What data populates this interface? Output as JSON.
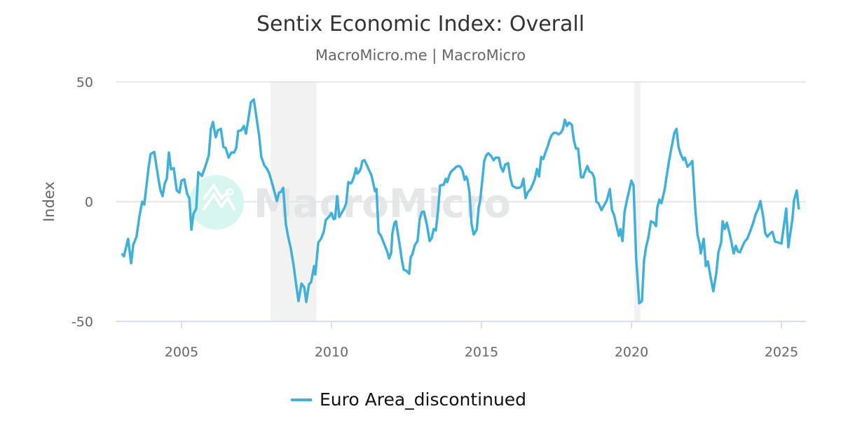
{
  "chart_data": {
    "type": "line",
    "title": "Sentix Economic Index: Overall",
    "subtitle": "MacroMicro.me | MacroMicro",
    "ylabel": "Index",
    "xlabel": "",
    "ylim": [
      -50,
      50
    ],
    "xlim": [
      2002.78,
      2025.81
    ],
    "yticks": [
      50,
      0,
      -50
    ],
    "xticks": [
      2005,
      2010,
      2015,
      2020,
      2025
    ],
    "grid": true,
    "legend_placement": "bottom",
    "recession_bands": [
      [
        2007.97,
        2009.49
      ],
      [
        2020.09,
        2020.3
      ]
    ],
    "watermark": "MacroMicro",
    "colors": {
      "line": "#3eb0da",
      "band": "#f2f2f2",
      "grid": "#e0e0e0"
    },
    "series": [
      {
        "name": "Euro Area_discontinued",
        "points": [
          [
            2003.01,
            -21.6
          ],
          [
            2003.08,
            -22.8
          ],
          [
            2003.22,
            -15.5
          ],
          [
            2003.32,
            -25.7
          ],
          [
            2003.39,
            -18.1
          ],
          [
            2003.5,
            -14.6
          ],
          [
            2003.6,
            -5.8
          ],
          [
            2003.69,
            0
          ],
          [
            2003.76,
            -1.2
          ],
          [
            2003.9,
            14.0
          ],
          [
            2003.97,
            19.9
          ],
          [
            2004.09,
            20.8
          ],
          [
            2004.23,
            9.6
          ],
          [
            2004.3,
            4.7
          ],
          [
            2004.37,
            2.3
          ],
          [
            2004.44,
            7.6
          ],
          [
            2004.51,
            9.6
          ],
          [
            2004.58,
            20.5
          ],
          [
            2004.65,
            13.5
          ],
          [
            2004.74,
            14.0
          ],
          [
            2004.84,
            4.7
          ],
          [
            2004.93,
            3.8
          ],
          [
            2005.0,
            8.8
          ],
          [
            2005.09,
            9.4
          ],
          [
            2005.19,
            3.2
          ],
          [
            2005.26,
            1.5
          ],
          [
            2005.33,
            -11.7
          ],
          [
            2005.4,
            -5.0
          ],
          [
            2005.49,
            -2.9
          ],
          [
            2005.56,
            12.3
          ],
          [
            2005.68,
            10.8
          ],
          [
            2005.79,
            14.6
          ],
          [
            2005.91,
            19.3
          ],
          [
            2005.98,
            30.4
          ],
          [
            2006.05,
            33.3
          ],
          [
            2006.14,
            26.9
          ],
          [
            2006.21,
            29.8
          ],
          [
            2006.31,
            30.4
          ],
          [
            2006.4,
            22.8
          ],
          [
            2006.47,
            22.5
          ],
          [
            2006.57,
            18.4
          ],
          [
            2006.66,
            20.5
          ],
          [
            2006.75,
            20.5
          ],
          [
            2006.82,
            22.2
          ],
          [
            2006.89,
            29.5
          ],
          [
            2006.99,
            29.8
          ],
          [
            2007.08,
            31.6
          ],
          [
            2007.15,
            28.4
          ],
          [
            2007.24,
            35.4
          ],
          [
            2007.31,
            41.5
          ],
          [
            2007.41,
            42.7
          ],
          [
            2007.5,
            35.1
          ],
          [
            2007.59,
            27.2
          ],
          [
            2007.66,
            18.7
          ],
          [
            2007.76,
            15.2
          ],
          [
            2007.85,
            13.7
          ],
          [
            2007.92,
            12.0
          ],
          [
            2008.01,
            8.2
          ],
          [
            2008.08,
            5.0
          ],
          [
            2008.18,
            0.3
          ],
          [
            2008.25,
            3.8
          ],
          [
            2008.32,
            4.1
          ],
          [
            2008.39,
            5.8
          ],
          [
            2008.48,
            -9.4
          ],
          [
            2008.55,
            -14.3
          ],
          [
            2008.64,
            -19.3
          ],
          [
            2008.74,
            -26.9
          ],
          [
            2008.81,
            -33.6
          ],
          [
            2008.9,
            -41.5
          ],
          [
            2009.0,
            -34.2
          ],
          [
            2009.09,
            -35.7
          ],
          [
            2009.16,
            -41.8
          ],
          [
            2009.25,
            -34.5
          ],
          [
            2009.32,
            -33.6
          ],
          [
            2009.42,
            -26.9
          ],
          [
            2009.46,
            -30.4
          ],
          [
            2009.56,
            -17.0
          ],
          [
            2009.65,
            -15.5
          ],
          [
            2009.74,
            -12.6
          ],
          [
            2009.81,
            -7.6
          ],
          [
            2009.93,
            -6.1
          ],
          [
            2010.0,
            -4.7
          ],
          [
            2010.07,
            -7.3
          ],
          [
            2010.12,
            -7.0
          ],
          [
            2010.19,
            2.3
          ],
          [
            2010.26,
            -6.4
          ],
          [
            2010.35,
            -4.4
          ],
          [
            2010.42,
            -2.9
          ],
          [
            2010.49,
            -0.6
          ],
          [
            2010.56,
            8.2
          ],
          [
            2010.63,
            7.6
          ],
          [
            2010.68,
            8.2
          ],
          [
            2010.75,
            10.5
          ],
          [
            2010.82,
            14.0
          ],
          [
            2010.86,
            11.7
          ],
          [
            2010.93,
            12.6
          ],
          [
            2010.98,
            14.0
          ],
          [
            2011.03,
            17.0
          ],
          [
            2011.1,
            17.3
          ],
          [
            2011.17,
            15.5
          ],
          [
            2011.24,
            13.5
          ],
          [
            2011.33,
            11.1
          ],
          [
            2011.4,
            7.3
          ],
          [
            2011.45,
            4.4
          ],
          [
            2011.5,
            5.3
          ],
          [
            2011.57,
            -12.9
          ],
          [
            2011.64,
            -14.0
          ],
          [
            2011.71,
            -16.1
          ],
          [
            2011.8,
            -19.0
          ],
          [
            2011.87,
            -21.3
          ],
          [
            2011.92,
            -23.7
          ],
          [
            2011.99,
            -21.3
          ],
          [
            2012.03,
            -13.2
          ],
          [
            2012.1,
            -8.8
          ],
          [
            2012.15,
            -8.2
          ],
          [
            2012.27,
            -17.8
          ],
          [
            2012.34,
            -24.0
          ],
          [
            2012.41,
            -28.4
          ],
          [
            2012.5,
            -28.9
          ],
          [
            2012.59,
            -30.1
          ],
          [
            2012.64,
            -23.1
          ],
          [
            2012.69,
            -22.2
          ],
          [
            2012.78,
            -18.1
          ],
          [
            2012.87,
            -16.4
          ],
          [
            2012.94,
            -7.3
          ],
          [
            2013.01,
            -4.4
          ],
          [
            2013.08,
            -4.1
          ],
          [
            2013.18,
            -9.6
          ],
          [
            2013.27,
            -16.4
          ],
          [
            2013.34,
            -15.2
          ],
          [
            2013.41,
            -11.4
          ],
          [
            2013.48,
            -12.0
          ],
          [
            2013.55,
            -4.1
          ],
          [
            2013.62,
            6.7
          ],
          [
            2013.67,
            7.0
          ],
          [
            2013.74,
            7.0
          ],
          [
            2013.81,
            9.6
          ],
          [
            2013.86,
            8.2
          ],
          [
            2013.93,
            11.1
          ],
          [
            2013.99,
            12.6
          ],
          [
            2014.09,
            13.7
          ],
          [
            2014.16,
            14.6
          ],
          [
            2014.23,
            14.9
          ],
          [
            2014.3,
            14.6
          ],
          [
            2014.37,
            12.9
          ],
          [
            2014.44,
            9.1
          ],
          [
            2014.49,
            10.5
          ],
          [
            2014.53,
            9.4
          ],
          [
            2014.6,
            3.8
          ],
          [
            2014.67,
            -9.4
          ],
          [
            2014.74,
            -13.7
          ],
          [
            2014.84,
            -11.7
          ],
          [
            2014.91,
            -2.3
          ],
          [
            2014.95,
            0
          ],
          [
            2015.02,
            8.2
          ],
          [
            2015.09,
            17.0
          ],
          [
            2015.16,
            19.3
          ],
          [
            2015.23,
            20.2
          ],
          [
            2015.33,
            19.0
          ],
          [
            2015.4,
            17.3
          ],
          [
            2015.47,
            18.4
          ],
          [
            2015.58,
            18.4
          ],
          [
            2015.65,
            14.3
          ],
          [
            2015.72,
            12.6
          ],
          [
            2015.79,
            15.5
          ],
          [
            2015.89,
            16.1
          ],
          [
            2015.96,
            10.2
          ],
          [
            2016.03,
            6.7
          ],
          [
            2016.1,
            6.1
          ],
          [
            2016.17,
            5.8
          ],
          [
            2016.26,
            5.8
          ],
          [
            2016.33,
            6.4
          ],
          [
            2016.4,
            9.6
          ],
          [
            2016.47,
            1.5
          ],
          [
            2016.54,
            3.8
          ],
          [
            2016.64,
            5.3
          ],
          [
            2016.71,
            7.3
          ],
          [
            2016.78,
            9.6
          ],
          [
            2016.85,
            13.7
          ],
          [
            2016.92,
            10.5
          ],
          [
            2016.99,
            18.7
          ],
          [
            2017.06,
            17.8
          ],
          [
            2017.13,
            20.5
          ],
          [
            2017.2,
            22.8
          ],
          [
            2017.27,
            25.7
          ],
          [
            2017.34,
            27.8
          ],
          [
            2017.41,
            28.7
          ],
          [
            2017.5,
            28.7
          ],
          [
            2017.57,
            28.1
          ],
          [
            2017.64,
            28.7
          ],
          [
            2017.71,
            30.1
          ],
          [
            2017.78,
            34.2
          ],
          [
            2017.85,
            31.6
          ],
          [
            2017.92,
            33.0
          ],
          [
            2018.01,
            32.2
          ],
          [
            2018.08,
            25.7
          ],
          [
            2018.15,
            22.2
          ],
          [
            2018.22,
            22.2
          ],
          [
            2018.32,
            10.2
          ],
          [
            2018.39,
            10.2
          ],
          [
            2018.43,
            11.7
          ],
          [
            2018.53,
            14.9
          ],
          [
            2018.6,
            12.6
          ],
          [
            2018.69,
            12.0
          ],
          [
            2018.76,
            9.9
          ],
          [
            2018.83,
            0
          ],
          [
            2018.9,
            -0.6
          ],
          [
            2019.0,
            -3.5
          ],
          [
            2019.09,
            -1.5
          ],
          [
            2019.18,
            0.6
          ],
          [
            2019.28,
            5.3
          ],
          [
            2019.35,
            -3.5
          ],
          [
            2019.42,
            -5.6
          ],
          [
            2019.49,
            -9.4
          ],
          [
            2019.58,
            -14.3
          ],
          [
            2019.63,
            -11.4
          ],
          [
            2019.7,
            -16.4
          ],
          [
            2019.77,
            -4.1
          ],
          [
            2019.86,
            1.2
          ],
          [
            2019.93,
            5.0
          ],
          [
            2020.0,
            8.8
          ],
          [
            2020.07,
            6.7
          ],
          [
            2020.16,
            -24.0
          ],
          [
            2020.26,
            -42.4
          ],
          [
            2020.35,
            -41.5
          ],
          [
            2020.42,
            -24.3
          ],
          [
            2020.49,
            -18.7
          ],
          [
            2020.56,
            -15.2
          ],
          [
            2020.65,
            -8.2
          ],
          [
            2020.75,
            -8.8
          ],
          [
            2020.82,
            -10.2
          ],
          [
            2020.86,
            -2.6
          ],
          [
            2020.93,
            0.9
          ],
          [
            2021.0,
            -0.6
          ],
          [
            2021.1,
            4.7
          ],
          [
            2021.19,
            12.0
          ],
          [
            2021.26,
            17.5
          ],
          [
            2021.33,
            22.2
          ],
          [
            2021.43,
            28.7
          ],
          [
            2021.5,
            30.4
          ],
          [
            2021.57,
            22.8
          ],
          [
            2021.64,
            19.9
          ],
          [
            2021.73,
            17.5
          ],
          [
            2021.78,
            18.4
          ],
          [
            2021.87,
            14.6
          ],
          [
            2021.96,
            15.8
          ],
          [
            2022.03,
            17.0
          ],
          [
            2022.13,
            -3.5
          ],
          [
            2022.2,
            -13.7
          ],
          [
            2022.27,
            -17.5
          ],
          [
            2022.31,
            -21.6
          ],
          [
            2022.41,
            -15.5
          ],
          [
            2022.48,
            -26.9
          ],
          [
            2022.55,
            -24.9
          ],
          [
            2022.64,
            -31.6
          ],
          [
            2022.73,
            -37.4
          ],
          [
            2022.83,
            -29.8
          ],
          [
            2022.9,
            -21.1
          ],
          [
            2022.99,
            -17.0
          ],
          [
            2023.04,
            -8.2
          ],
          [
            2023.11,
            -11.4
          ],
          [
            2023.18,
            -8.8
          ],
          [
            2023.27,
            -13.2
          ],
          [
            2023.34,
            -17.3
          ],
          [
            2023.41,
            -21.6
          ],
          [
            2023.48,
            -18.4
          ],
          [
            2023.55,
            -20.8
          ],
          [
            2023.62,
            -21.1
          ],
          [
            2023.72,
            -18.1
          ],
          [
            2023.79,
            -16.4
          ],
          [
            2023.86,
            -15.5
          ],
          [
            2023.95,
            -12.6
          ],
          [
            2024.04,
            -9.6
          ],
          [
            2024.14,
            -5.3
          ],
          [
            2024.23,
            -2.9
          ],
          [
            2024.3,
            0.3
          ],
          [
            2024.39,
            -6.1
          ],
          [
            2024.46,
            -13.2
          ],
          [
            2024.53,
            -14.6
          ],
          [
            2024.63,
            -13.2
          ],
          [
            2024.7,
            -12.6
          ],
          [
            2024.79,
            -16.7
          ],
          [
            2024.88,
            -17.0
          ],
          [
            2025.0,
            -17.5
          ],
          [
            2025.16,
            -2.9
          ],
          [
            2025.23,
            -19.0
          ],
          [
            2025.37,
            -7.0
          ],
          [
            2025.42,
            0.6
          ],
          [
            2025.51,
            4.7
          ],
          [
            2025.58,
            -3.2
          ]
        ]
      }
    ]
  }
}
